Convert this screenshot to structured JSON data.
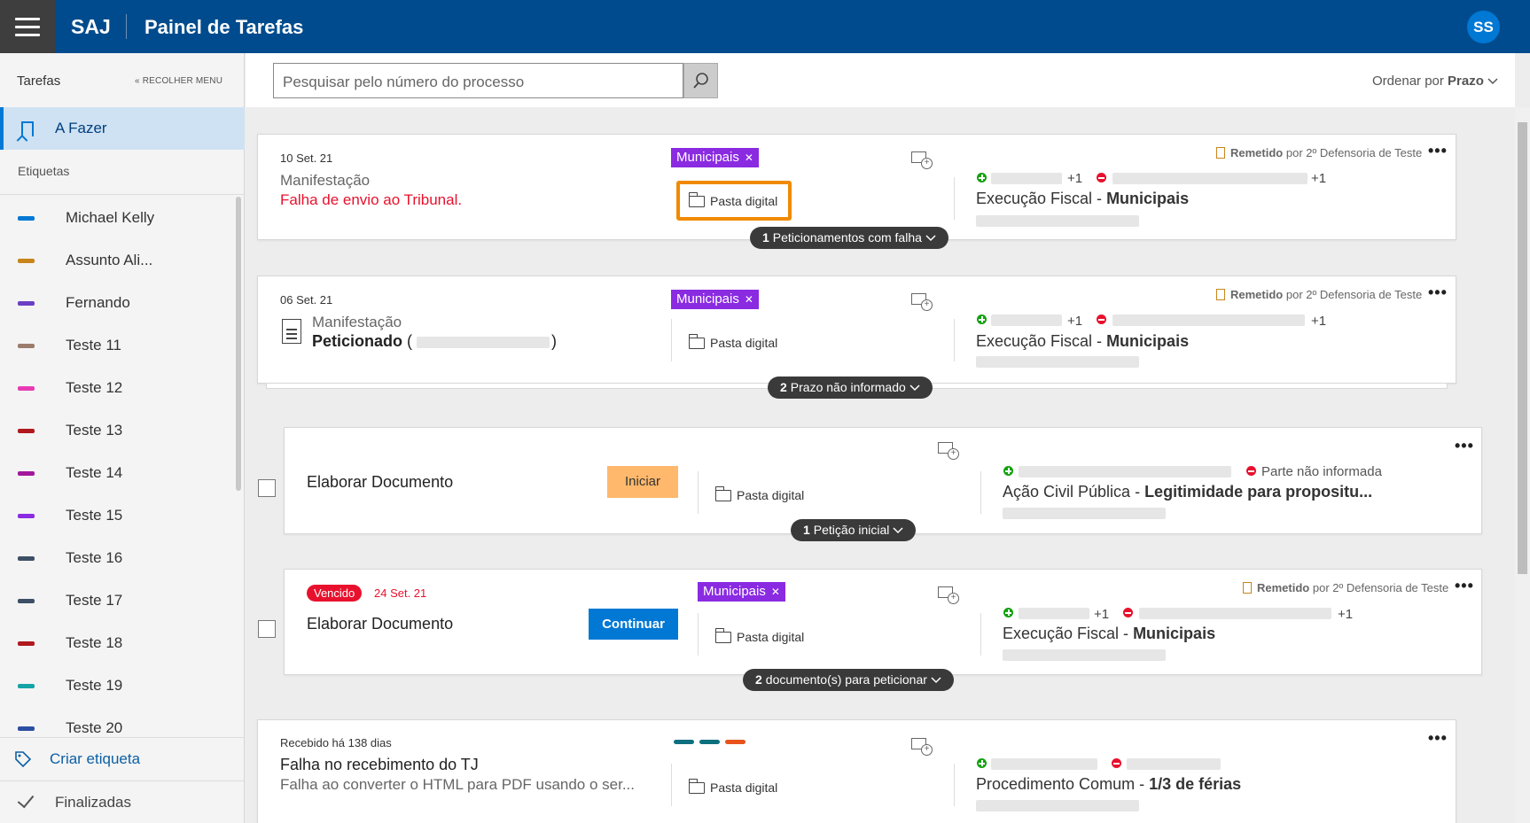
{
  "header": {
    "brand": "SAJ",
    "title": "Painel de Tarefas",
    "avatar": "SS"
  },
  "sidebar": {
    "heading": "Tarefas",
    "collapse": "« RECOLHER MENU",
    "active_item": "A Fazer",
    "section": "Etiquetas",
    "tags": [
      {
        "name": "Michael Kelly",
        "color": "#0078d4"
      },
      {
        "name": "Assunto Ali...",
        "color": "#c8851c"
      },
      {
        "name": "Fernando",
        "color": "#6a3fc4"
      },
      {
        "name": "Teste 11",
        "color": "#9c7b6b"
      },
      {
        "name": "Teste 12",
        "color": "#e83ab5"
      },
      {
        "name": "Teste 13",
        "color": "#b0191e"
      },
      {
        "name": "Teste 14",
        "color": "#a3179c"
      },
      {
        "name": "Teste 15",
        "color": "#8a2be2"
      },
      {
        "name": "Teste 16",
        "color": "#3d4f66"
      },
      {
        "name": "Teste 17",
        "color": "#3d4f66"
      },
      {
        "name": "Teste 18",
        "color": "#b0191e"
      },
      {
        "name": "Teste 19",
        "color": "#14a3a6"
      },
      {
        "name": "Teste 20",
        "color": "#2b4fa3"
      }
    ],
    "create": "Criar etiqueta",
    "finished": "Finalizadas"
  },
  "toolbar": {
    "search_placeholder": "Pesquisar pelo número do processo",
    "sort_label": "Ordenar por",
    "sort_value": "Prazo"
  },
  "cards": {
    "c1": {
      "date": "10 Set. 21",
      "type": "Manifestação",
      "status": "Falha de envio ao Tribunal.",
      "tag": "Municipais",
      "pasta": "Pasta digital",
      "remetido": "Remetido",
      "remetido_by": "por 2º Defensoria de Teste",
      "plus_a": "+1",
      "plus_b": "+1",
      "proc_class": "Execução Fiscal - ",
      "proc_subject": "Municipais",
      "pill_n": "1",
      "pill_text": "Peticionamentos com falha"
    },
    "c2": {
      "date": "06 Set. 21",
      "type": "Manifestação",
      "status": "Peticionado",
      "paren_open": "(",
      "paren_close": ")",
      "tag": "Municipais",
      "pasta": "Pasta digital",
      "remetido": "Remetido",
      "remetido_by": "por 2º Defensoria de Teste",
      "plus_a": "+1",
      "plus_b": "+1",
      "proc_class": "Execução Fiscal - ",
      "proc_subject": "Municipais",
      "pill_n": "2",
      "pill_text": "Prazo não informado"
    },
    "c3": {
      "title": "Elaborar Documento",
      "button": "Iniciar",
      "pasta": "Pasta digital",
      "parte": "Parte não informada",
      "proc_class": "Ação Civil Pública - ",
      "proc_subject": "Legitimidade para propositu...",
      "pill_n": "1",
      "pill_text": "Petição inicial"
    },
    "c4": {
      "badge": "Vencido",
      "date": "24 Set. 21",
      "title": "Elaborar Documento",
      "button": "Continuar",
      "tag": "Municipais",
      "pasta": "Pasta digital",
      "remetido": "Remetido",
      "remetido_by": "por 2º Defensoria de Teste",
      "plus_a": "+1",
      "plus_b": "+1",
      "proc_class": "Execução Fiscal - ",
      "proc_subject": "Municipais",
      "pill_n": "2",
      "pill_text": "documento(s) para peticionar"
    },
    "c5": {
      "received": "Recebido há 138 dias",
      "title": "Falha no recebimento do TJ",
      "subtitle": "Falha ao converter o HTML para PDF usando o ser...",
      "pasta": "Pasta digital",
      "colors": [
        "#0e6f7e",
        "#0e6f7e",
        "#e8531c"
      ],
      "proc_class": "Procedimento Comum - ",
      "proc_subject": "1/3 de férias"
    }
  }
}
